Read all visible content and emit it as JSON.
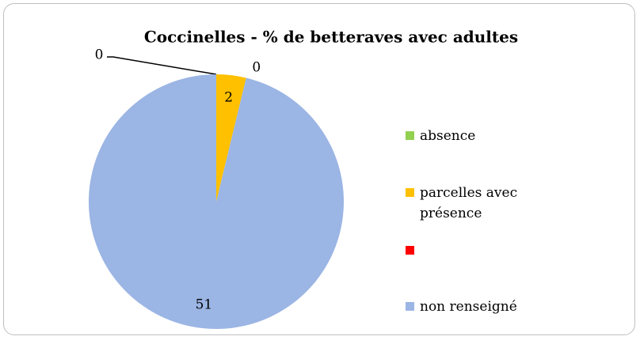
{
  "chart_data": {
    "type": "pie",
    "title": "Coccinelles - % de betteraves avec adultes",
    "categories": [
      "absence",
      "parcelles avec présence",
      null,
      "non renseigné"
    ],
    "values": [
      0,
      2,
      0,
      51
    ],
    "colors": [
      "#92d050",
      "#ffc000",
      "#ff0000",
      "#9bb5e4"
    ],
    "legend": "right"
  }
}
